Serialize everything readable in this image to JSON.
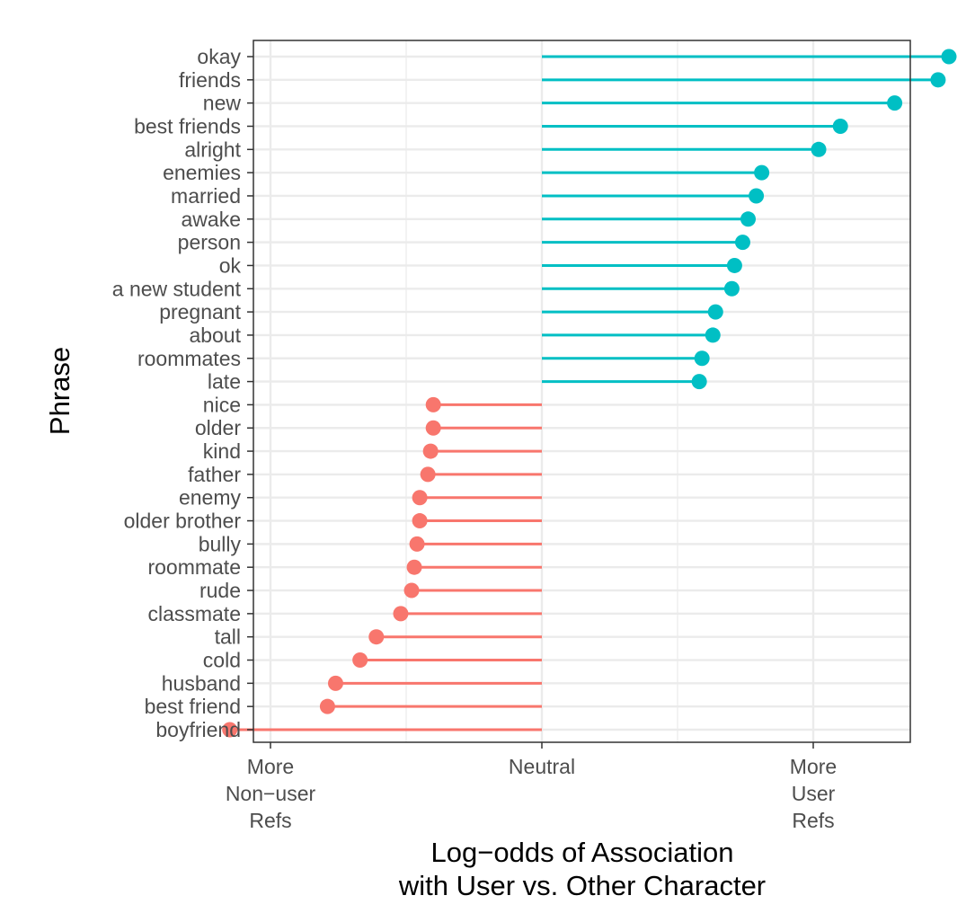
{
  "chart_data": {
    "type": "lollipop",
    "title": "",
    "xlabel": [
      "Log−odds of Association",
      "with User vs. Other Character"
    ],
    "ylabel": "Phrase",
    "xlim": [
      -1.0,
      1.6
    ],
    "neutral": 0,
    "x_ticks": [
      {
        "value": -1,
        "lines": [
          "More",
          "Non−user",
          "Refs"
        ]
      },
      {
        "value": 0,
        "lines": [
          "Neutral"
        ]
      },
      {
        "value": 1,
        "lines": [
          "More",
          "User",
          "Refs"
        ]
      }
    ],
    "grid": true,
    "legend": "none",
    "colors": {
      "positive": "#00bfc4",
      "negative": "#f8766d",
      "grid": "#ebebeb",
      "border": "#333333"
    },
    "categories": [
      "okay",
      "friends",
      "new",
      "best friends",
      "alright",
      "enemies",
      "married",
      "awake",
      "person",
      "ok",
      "a new student",
      "pregnant",
      "about",
      "roommates",
      "late",
      "nice",
      "older",
      "kind",
      "father",
      "enemy",
      "older brother",
      "bully",
      "roommate",
      "rude",
      "classmate",
      "tall",
      "cold",
      "husband",
      "best friend",
      "boyfriend"
    ],
    "values": [
      1.5,
      1.46,
      1.3,
      1.1,
      1.02,
      0.81,
      0.79,
      0.76,
      0.74,
      0.71,
      0.7,
      0.64,
      0.63,
      0.59,
      0.58,
      -0.4,
      -0.4,
      -0.41,
      -0.42,
      -0.45,
      -0.45,
      -0.46,
      -0.47,
      -0.48,
      -0.52,
      -0.61,
      -0.67,
      -0.76,
      -0.79,
      -1.15
    ]
  }
}
